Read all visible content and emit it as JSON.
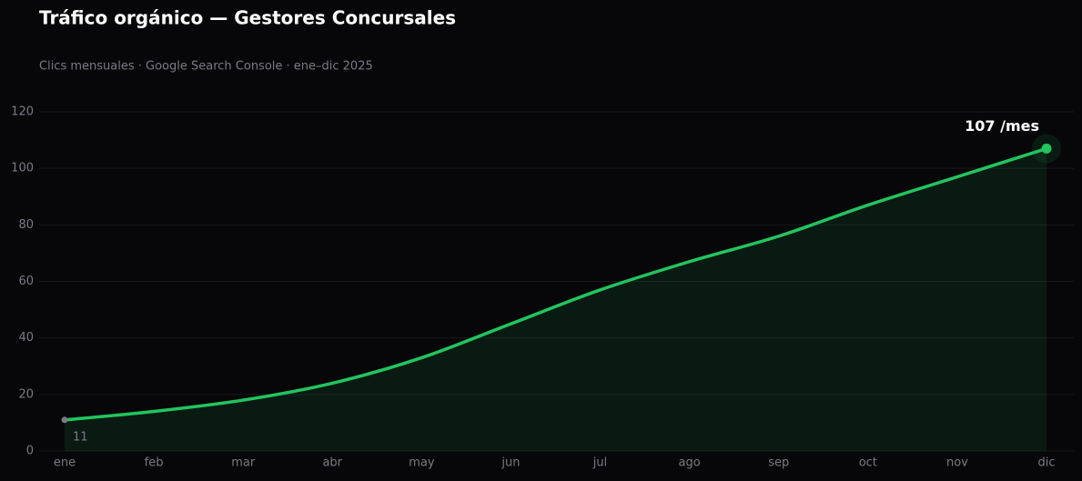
{
  "chart_data": {
    "type": "line",
    "title": "Tráfico orgánico — Gestores Concursales",
    "subtitle": "Clics mensuales · Google Search Console · ene–dic 2025",
    "categories": [
      "ene",
      "feb",
      "mar",
      "abr",
      "may",
      "jun",
      "jul",
      "ago",
      "sep",
      "oct",
      "nov",
      "dic"
    ],
    "series": [
      {
        "color": "#22c55e",
        "values": [
          11,
          14,
          18,
          24,
          33,
          45,
          57,
          67,
          76,
          87,
          97,
          107
        ],
        "value_labels": [
          "11",
          null,
          null,
          null,
          null,
          null,
          null,
          null,
          null,
          null,
          null,
          "107 /mes"
        ]
      }
    ],
    "ylim": [
      0,
      120
    ],
    "yticks": [
      0,
      20,
      40,
      60,
      80,
      100,
      120
    ],
    "grid": true,
    "area": true
  }
}
